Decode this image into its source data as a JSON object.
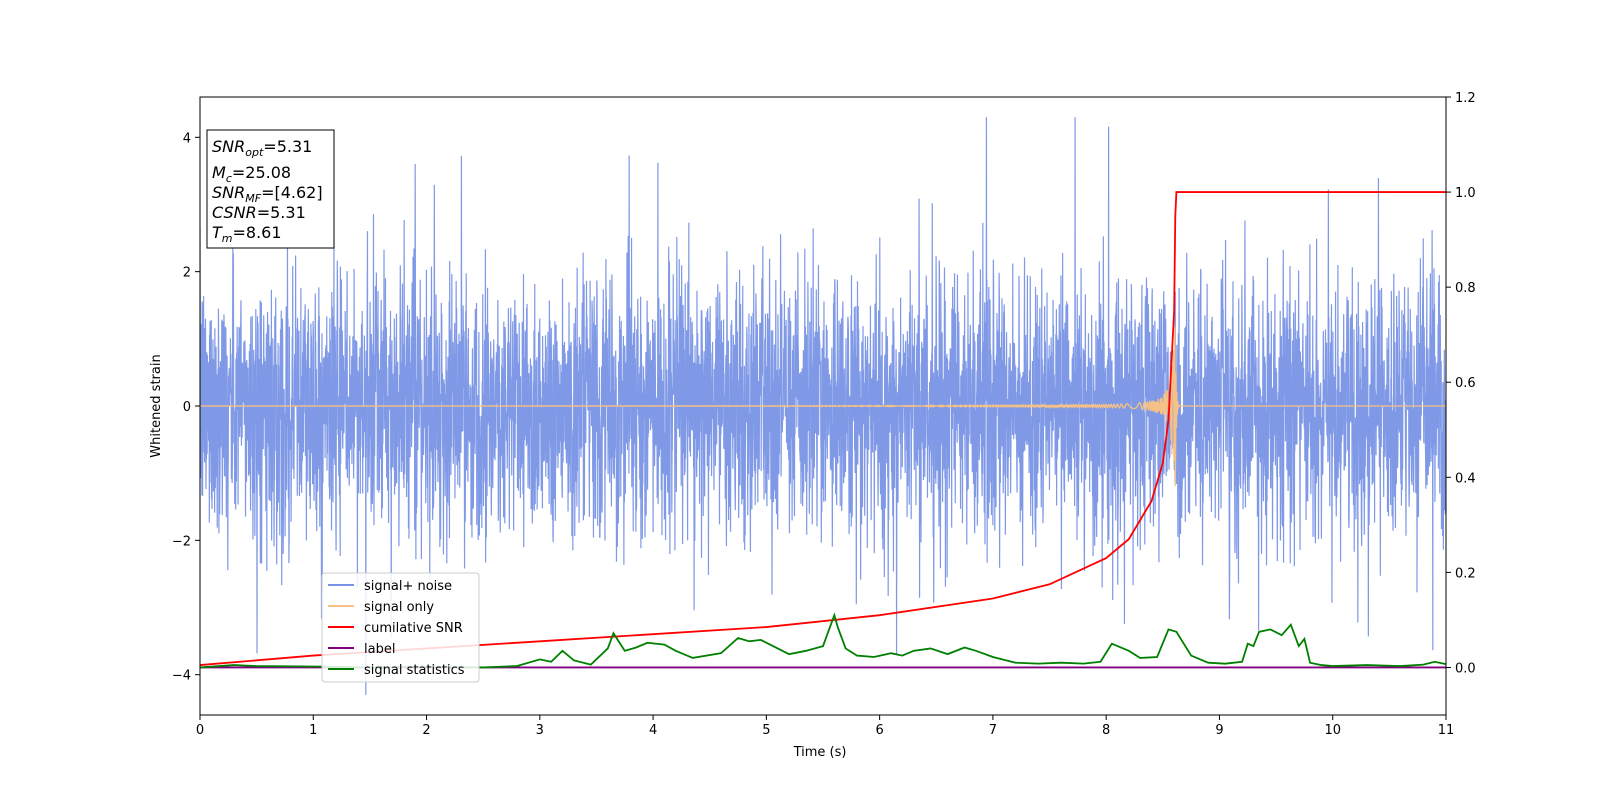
{
  "chart_data": {
    "type": "line",
    "xlabel": "Time (s)",
    "ylabel": "Whitened strain",
    "xlim": [
      0,
      11
    ],
    "ylim_left": [
      -4.6,
      4.6
    ],
    "ylim_right": [
      -0.1,
      1.2
    ],
    "x_ticks": [
      "0",
      "1",
      "2",
      "3",
      "4",
      "5",
      "6",
      "7",
      "8",
      "9",
      "10",
      "11"
    ],
    "y_ticks_left": [
      "4",
      "2",
      "0",
      "−2",
      "−4"
    ],
    "y_ticks_right": [
      "1.2",
      "1.0",
      "0.8",
      "0.6",
      "0.4",
      "0.2",
      "0.0"
    ],
    "info_box": {
      "snr_opt": {
        "main": "SNR",
        "sub": "opt",
        "value": "=5.31"
      },
      "mc": {
        "main": "M",
        "sub": "c",
        "value": "=25.08"
      },
      "snr_mf": {
        "main": "SNR",
        "sub": "MF",
        "value": "=[4.62]"
      },
      "csnr": {
        "main": "CSNR",
        "sub": "",
        "value": "=5.31"
      },
      "tm": {
        "main": "T",
        "sub": "m",
        "value": "=8.61"
      }
    },
    "legend_position": "lower-left",
    "series": [
      {
        "name": "signal+ noise",
        "axis": "left",
        "color": "#7893e6",
        "description_values": {
          "noise_std": 0.95,
          "x_range": [
            0,
            11
          ]
        }
      },
      {
        "name": "signal only",
        "axis": "left",
        "color": "#f5c186",
        "merger_time": 8.61,
        "peak_amplitude": 1.2
      },
      {
        "name": "cumilative SNR",
        "axis": "right",
        "color": "#ff0000",
        "x": [
          0,
          1,
          2,
          3,
          4,
          5,
          6,
          7,
          7.5,
          8,
          8.2,
          8.4,
          8.5,
          8.55,
          8.6,
          8.61,
          8.62,
          11
        ],
        "y": [
          0.005,
          0.025,
          0.04,
          0.055,
          0.07,
          0.085,
          0.11,
          0.145,
          0.175,
          0.23,
          0.27,
          0.35,
          0.43,
          0.52,
          0.75,
          0.95,
          1.0,
          1.0
        ]
      },
      {
        "name": "label",
        "axis": "right",
        "color": "#800080",
        "x": [
          0,
          11
        ],
        "y": [
          0.0,
          0.0
        ]
      },
      {
        "name": "signal statistics",
        "axis": "right",
        "color": "#008000",
        "x": [
          0,
          0.3,
          0.5,
          1.0,
          1.5,
          2.0,
          2.5,
          2.8,
          3.0,
          3.1,
          3.2,
          3.3,
          3.45,
          3.6,
          3.65,
          3.75,
          3.85,
          3.95,
          4.1,
          4.2,
          4.35,
          4.6,
          4.75,
          4.85,
          4.95,
          5.1,
          5.2,
          5.35,
          5.5,
          5.6,
          5.63,
          5.7,
          5.8,
          5.95,
          6.1,
          6.2,
          6.3,
          6.45,
          6.6,
          6.75,
          6.85,
          7.0,
          7.2,
          7.4,
          7.6,
          7.8,
          7.95,
          8.05,
          8.2,
          8.3,
          8.45,
          8.55,
          8.62,
          8.75,
          8.9,
          9.05,
          9.2,
          9.25,
          9.3,
          9.35,
          9.45,
          9.55,
          9.63,
          9.7,
          9.75,
          9.8,
          9.9,
          10.0,
          10.3,
          10.6,
          10.8,
          10.9,
          11.0
        ],
        "y": [
          0.0,
          0.005,
          0.003,
          0.002,
          0.0,
          0.002,
          0.0,
          0.003,
          0.017,
          0.012,
          0.035,
          0.015,
          0.006,
          0.04,
          0.072,
          0.035,
          0.042,
          0.052,
          0.048,
          0.035,
          0.02,
          0.03,
          0.062,
          0.055,
          0.058,
          0.04,
          0.028,
          0.035,
          0.045,
          0.11,
          0.085,
          0.04,
          0.025,
          0.022,
          0.03,
          0.025,
          0.035,
          0.04,
          0.028,
          0.042,
          0.035,
          0.022,
          0.01,
          0.008,
          0.01,
          0.008,
          0.012,
          0.05,
          0.035,
          0.02,
          0.022,
          0.08,
          0.075,
          0.025,
          0.01,
          0.008,
          0.012,
          0.05,
          0.045,
          0.075,
          0.08,
          0.068,
          0.09,
          0.045,
          0.06,
          0.01,
          0.005,
          0.003,
          0.005,
          0.003,
          0.006,
          0.012,
          0.007
        ]
      }
    ]
  }
}
